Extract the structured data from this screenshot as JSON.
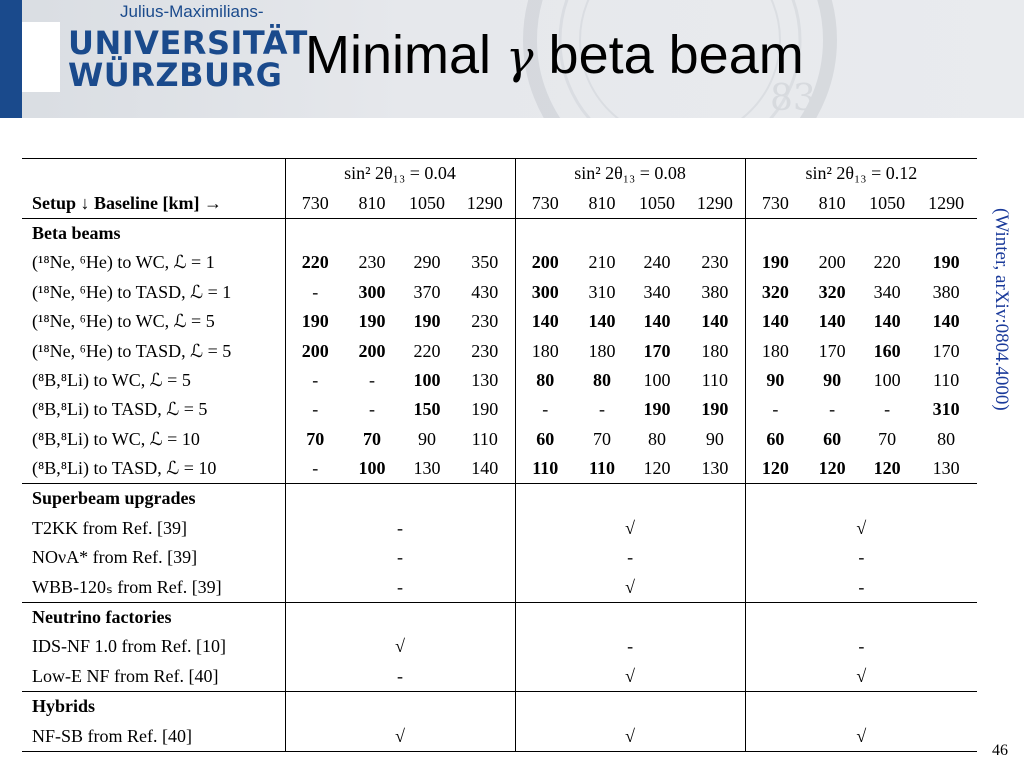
{
  "header": {
    "logo_top": "Julius-Maximilians-",
    "logo_line1": "UNIVERSITÄT",
    "logo_line2": "WÜRZBURG",
    "title_pre": "Minimal ",
    "title_gamma": "γ",
    "title_post": " beta beam"
  },
  "table": {
    "groups": [
      "sin² 2θ₁₃ = 0.04",
      "sin² 2θ₁₃ = 0.08",
      "sin² 2θ₁₃ = 0.12"
    ],
    "setup_header": "Setup ↓ Baseline [km] →",
    "baselines": [
      "730",
      "810",
      "1050",
      "1290",
      "730",
      "810",
      "1050",
      "1290",
      "730",
      "810",
      "1050",
      "1290"
    ],
    "sections": {
      "beta": "Beta beams",
      "superbeam": "Superbeam upgrades",
      "nf": "Neutrino factories",
      "hybrids": "Hybrids"
    },
    "beta_rows": [
      {
        "label": "(¹⁸Ne, ⁶He) to WC, ℒ = 1",
        "values": [
          "220",
          "230",
          "290",
          "350",
          "200",
          "210",
          "240",
          "230",
          "190",
          "200",
          "220",
          "190"
        ]
      },
      {
        "label": "(¹⁸Ne, ⁶He) to TASD, ℒ = 1",
        "values": [
          "-",
          "300",
          "370",
          "430",
          "300",
          "310",
          "340",
          "380",
          "320",
          "320",
          "340",
          "380"
        ]
      },
      {
        "label": "(¹⁸Ne, ⁶He) to WC, ℒ = 5",
        "values": [
          "190",
          "190",
          "190",
          "230",
          "140",
          "140",
          "140",
          "140",
          "140",
          "140",
          "140",
          "140"
        ]
      },
      {
        "label": "(¹⁸Ne, ⁶He) to TASD, ℒ = 5",
        "values": [
          "200",
          "200",
          "220",
          "230",
          "180",
          "180",
          "170",
          "180",
          "180",
          "170",
          "160",
          "170"
        ]
      },
      {
        "label": "(⁸B,⁸Li) to WC, ℒ = 5",
        "values": [
          "-",
          "-",
          "100",
          "130",
          "80",
          "80",
          "100",
          "110",
          "90",
          "90",
          "100",
          "110"
        ]
      },
      {
        "label": "(⁸B,⁸Li) to TASD, ℒ = 5",
        "values": [
          "-",
          "-",
          "150",
          "190",
          "-",
          "-",
          "190",
          "190",
          "-",
          "-",
          "-",
          "310"
        ]
      },
      {
        "label": "(⁸B,⁸Li) to WC, ℒ = 10",
        "values": [
          "70",
          "70",
          "90",
          "110",
          "60",
          "70",
          "80",
          "90",
          "60",
          "60",
          "70",
          "80"
        ]
      },
      {
        "label": "(⁸B,⁸Li) to TASD, ℒ = 10",
        "values": [
          "-",
          "100",
          "130",
          "140",
          "110",
          "110",
          "120",
          "130",
          "120",
          "120",
          "120",
          "130"
        ]
      }
    ],
    "superbeam_rows": [
      {
        "label": "T2KK from Ref. [39]",
        "values": [
          "-",
          "√",
          "√"
        ]
      },
      {
        "label": "NOνA* from Ref. [39]",
        "values": [
          "-",
          "-",
          "-"
        ]
      },
      {
        "label": "WBB-120ₛ from Ref. [39]",
        "values": [
          "-",
          "√",
          "-"
        ]
      }
    ],
    "nf_rows": [
      {
        "label": "IDS-NF 1.0 from Ref. [10]",
        "values": [
          "√",
          "-",
          "-"
        ]
      },
      {
        "label": "Low-E NF from Ref. [40]",
        "values": [
          "-",
          "√",
          "√"
        ]
      }
    ],
    "hybrid_rows": [
      {
        "label": "NF-SB from Ref. [40]",
        "values": [
          "√",
          "√",
          "√"
        ]
      }
    ]
  },
  "side_note": "(Winter, arXiv:0804.4000)",
  "page_number": "46"
}
